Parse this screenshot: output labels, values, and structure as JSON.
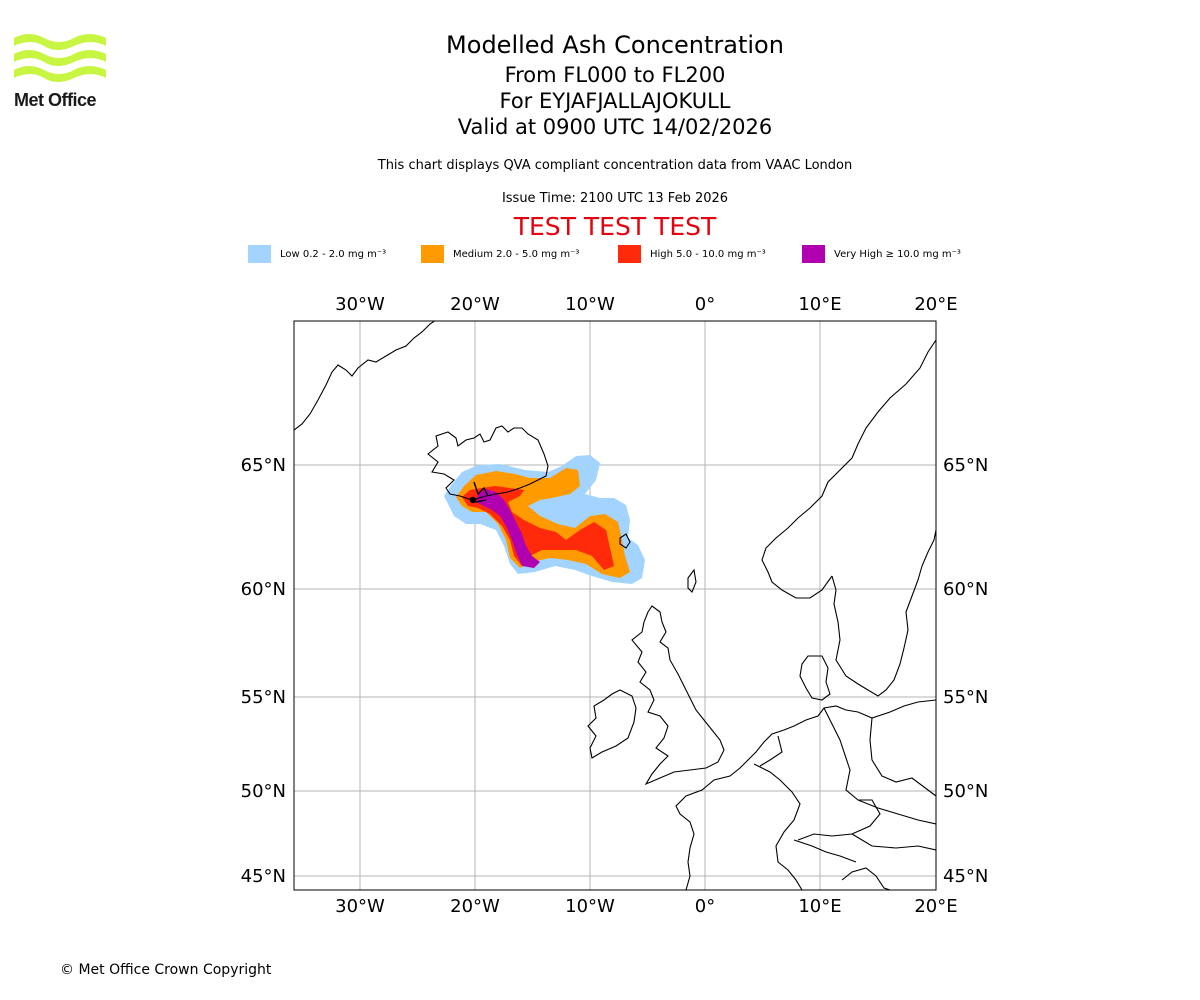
{
  "logo": {
    "text": "Met Office",
    "color": "#c8f542"
  },
  "title": {
    "main": "Modelled Ash Concentration",
    "levels": "From FL000 to FL200",
    "volcano": "For EYJAFJALLAJOKULL",
    "valid": "Valid at 0900 UTC 14/02/2026",
    "description": "This chart displays QVA compliant concentration data from VAAC London",
    "issue_time": "Issue Time: 2100 UTC 13 Feb 2026",
    "test_banner": "TEST TEST TEST"
  },
  "legend": [
    {
      "label": "Low 0.2 - 2.0 mg m⁻³",
      "color": "#a3d4ff"
    },
    {
      "label": "Medium 2.0 - 5.0 mg m⁻³",
      "color": "#ff9a00"
    },
    {
      "label": "High 5.0 - 10.0 mg m⁻³",
      "color": "#ff2a0a"
    },
    {
      "label": "Very High ≥ 10.0 mg m⁻³",
      "color": "#b000b0"
    }
  ],
  "map": {
    "lon_ticks": [
      "30°W",
      "20°W",
      "10°W",
      "0°",
      "10°E",
      "20°E"
    ],
    "lat_ticks": [
      "65°N",
      "60°N",
      "55°N",
      "50°N",
      "45°N"
    ]
  },
  "footer": "© Met Office Crown Copyright"
}
